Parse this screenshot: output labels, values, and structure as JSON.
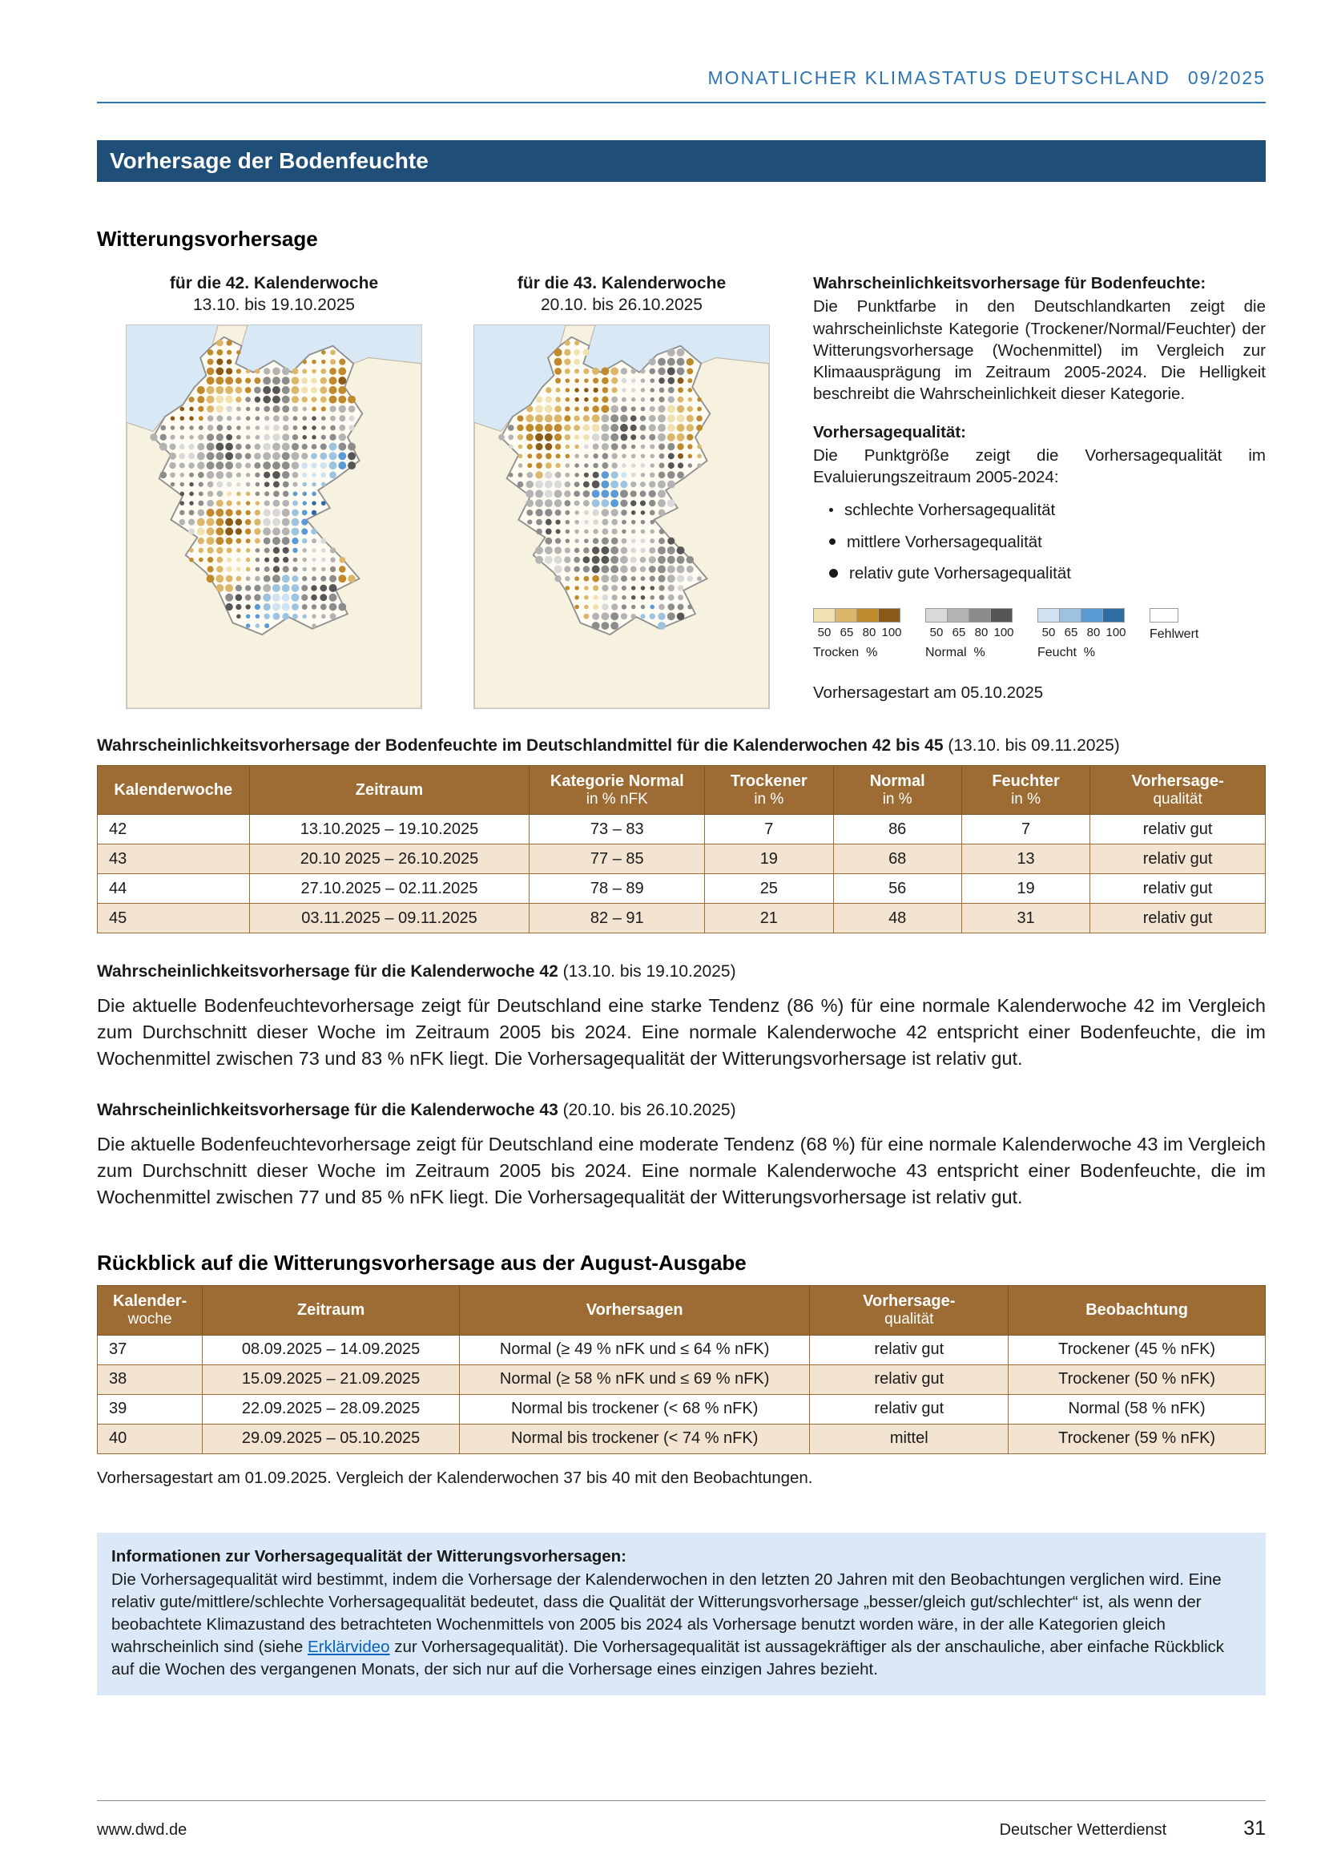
{
  "header": {
    "title": "MONATLICHER KLIMASTATUS DEUTSCHLAND",
    "issue": "09/2025"
  },
  "banner": {
    "title": "Vorhersage der Bodenfeuchte"
  },
  "weather_section": {
    "title": "Witterungsvorhersage"
  },
  "maps": [
    {
      "caption": "für die 42. Kalenderwoche",
      "period": "13.10. bis 19.10.2025"
    },
    {
      "caption": "für die 43. Kalenderwoche",
      "period": "20.10. bis 26.10.2025"
    }
  ],
  "sidebar": {
    "prob_title": "Wahrscheinlichkeitsvorhersage für Bodenfeuchte:",
    "prob_text": "Die Punktfarbe in den Deutschlandkarten zeigt die wahrscheinlichste Kategorie (Trockener/Normal/Feuchter) der Witterungsvorhersage (Wochenmittel) im Vergleich zur Klimaausprägung im Zeitraum 2005-2024. Die Helligkeit beschreibt die Wahrscheinlichkeit dieser Kategorie.",
    "quality_title": "Vorhersagequalität:",
    "quality_text": "Die Punktgröße zeigt die Vorhersagequalität im Evaluierungszeitraum 2005-2024:",
    "bullets": [
      "schlechte Vorhersagequalität",
      "mittlere Vorhersagequalität",
      "relativ gute Vorhersagequalität"
    ],
    "legend": {
      "groups": [
        {
          "label": "Trocken",
          "unit": "%",
          "ticks": [
            "50",
            "65",
            "80",
            "100"
          ],
          "colors": [
            "#f1e1b1",
            "#dcb76a",
            "#bf8a2e",
            "#8a5a19"
          ]
        },
        {
          "label": "Normal",
          "unit": "%",
          "ticks": [
            "50",
            "65",
            "80",
            "100"
          ],
          "colors": [
            "#d9d9d9",
            "#b3b3b3",
            "#8c8c8c",
            "#565656"
          ]
        },
        {
          "label": "Feucht",
          "unit": "%",
          "ticks": [
            "50",
            "65",
            "80",
            "100"
          ],
          "colors": [
            "#cfe3f2",
            "#9cc3e0",
            "#5b9bd5",
            "#2e6da4"
          ]
        }
      ],
      "missing": {
        "label": "Fehlwert",
        "color": "#ffffff"
      }
    },
    "forecast_start": "Vorhersagestart am 05.10.2025"
  },
  "table1": {
    "caption_bold": "Wahrscheinlichkeitsvorhersage der Bodenfeuchte im Deutschlandmittel für die Kalenderwochen 42 bis 45",
    "caption_rest": " (13.10. bis 09.11.2025)",
    "headers": [
      [
        "Kalenderwoche",
        ""
      ],
      [
        "Zeitraum",
        ""
      ],
      [
        "Kategorie Normal",
        "in % nFK"
      ],
      [
        "Trockener",
        "in %"
      ],
      [
        "Normal",
        "in %"
      ],
      [
        "Feuchter",
        "in %"
      ],
      [
        "Vorhersage-",
        "qualität"
      ]
    ],
    "rows": [
      [
        "42",
        "13.10.2025 – 19.10.2025",
        "73 – 83",
        "7",
        "86",
        "7",
        "relativ gut"
      ],
      [
        "43",
        "20.10 2025 – 26.10.2025",
        "77 – 85",
        "19",
        "68",
        "13",
        "relativ gut"
      ],
      [
        "44",
        "27.10.2025 – 02.11.2025",
        "78 – 89",
        "25",
        "56",
        "19",
        "relativ gut"
      ],
      [
        "45",
        "03.11.2025 – 09.11.2025",
        "82 – 91",
        "21",
        "48",
        "31",
        "relativ gut"
      ]
    ]
  },
  "kw42": {
    "heading_bold": "Wahrscheinlichkeitsvorhersage für die Kalenderwoche 42",
    "heading_rest": " (13.10. bis 19.10.2025)",
    "text": "Die aktuelle Bodenfeuchtevorhersage zeigt für Deutschland eine starke Tendenz (86 %) für eine normale Kalenderwoche 42 im Vergleich zum Durchschnitt dieser Woche im Zeitraum 2005 bis 2024. Eine normale Kalenderwoche 42 entspricht einer Bodenfeuchte, die im Wochenmittel zwischen 73 und 83 % nFK liegt. Die Vorhersagequalität der Witterungsvorhersage ist relativ gut."
  },
  "kw43": {
    "heading_bold": "Wahrscheinlichkeitsvorhersage für die Kalenderwoche 43",
    "heading_rest": " (20.10. bis 26.10.2025)",
    "text": "Die aktuelle Bodenfeuchtevorhersage zeigt für Deutschland eine moderate Tendenz (68 %) für eine normale Kalenderwoche 43 im Vergleich zum Durchschnitt dieser Woche im Zeitraum 2005 bis 2024. Eine normale Kalenderwoche 43 entspricht einer Bodenfeuchte, die im Wochenmittel zwischen 77 und 85 % nFK liegt. Die Vorhersagequalität der Witterungsvorhersage ist relativ gut."
  },
  "review_section": {
    "title": "Rückblick auf die Witterungsvorhersage aus der August-Ausgabe"
  },
  "table2": {
    "headers": [
      [
        "Kalender-",
        "woche"
      ],
      [
        "Zeitraum",
        ""
      ],
      [
        "Vorhersagen",
        ""
      ],
      [
        "Vorhersage-",
        "qualität"
      ],
      [
        "Beobachtung",
        ""
      ]
    ],
    "rows": [
      [
        "37",
        "08.09.2025 – 14.09.2025",
        "Normal (≥ 49 % nFK und ≤ 64 % nFK)",
        "relativ gut",
        "Trockener (45 % nFK)"
      ],
      [
        "38",
        "15.09.2025 – 21.09.2025",
        "Normal (≥ 58 % nFK und ≤ 69 % nFK)",
        "relativ gut",
        "Trockener (50 % nFK)"
      ],
      [
        "39",
        "22.09.2025 – 28.09.2025",
        "Normal bis trockener (< 68 % nFK)",
        "relativ gut",
        "Normal (58 % nFK)"
      ],
      [
        "40",
        "29.09.2025 – 05.10.2025",
        "Normal bis trockener (< 74 % nFK)",
        "mittel",
        "Trockener (59 % nFK)"
      ]
    ],
    "note": "Vorhersagestart am 01.09.2025. Vergleich der Kalenderwochen 37 bis 40 mit den Beobachtungen."
  },
  "infobox": {
    "title": "Informationen zur Vorhersagequalität der Witterungsvorhersagen:",
    "text_before_link": "Die Vorhersagequalität wird bestimmt, indem die Vorhersage der Kalenderwochen in den letzten 20 Jahren mit den Beobachtungen verglichen wird. Eine relativ gute/mittlere/schlechte Vorhersagequalität bedeutet, dass die Qualität der Witterungsvorhersage „besser/gleich gut/schlechter“ ist, als wenn der beobachtete Klimazustand des betrachteten Wochenmittels von 2005 bis 2024 als Vorhersage benutzt worden wäre, in der alle Kategorien gleich wahrscheinlich sind (siehe ",
    "link_text": "Erklärvideo",
    "text_after_link": " zur Vorhersagequalität). Die Vorhersagequalität ist aussagekräftiger als der anschauliche, aber einfache Rückblick auf die Wochen des vergangenen Monats, der sich nur auf die Vorhersage eines einzigen Jahres bezieht."
  },
  "footer": {
    "left": "www.dwd.de",
    "center": "Deutscher Wetterdienst",
    "page": "31"
  }
}
